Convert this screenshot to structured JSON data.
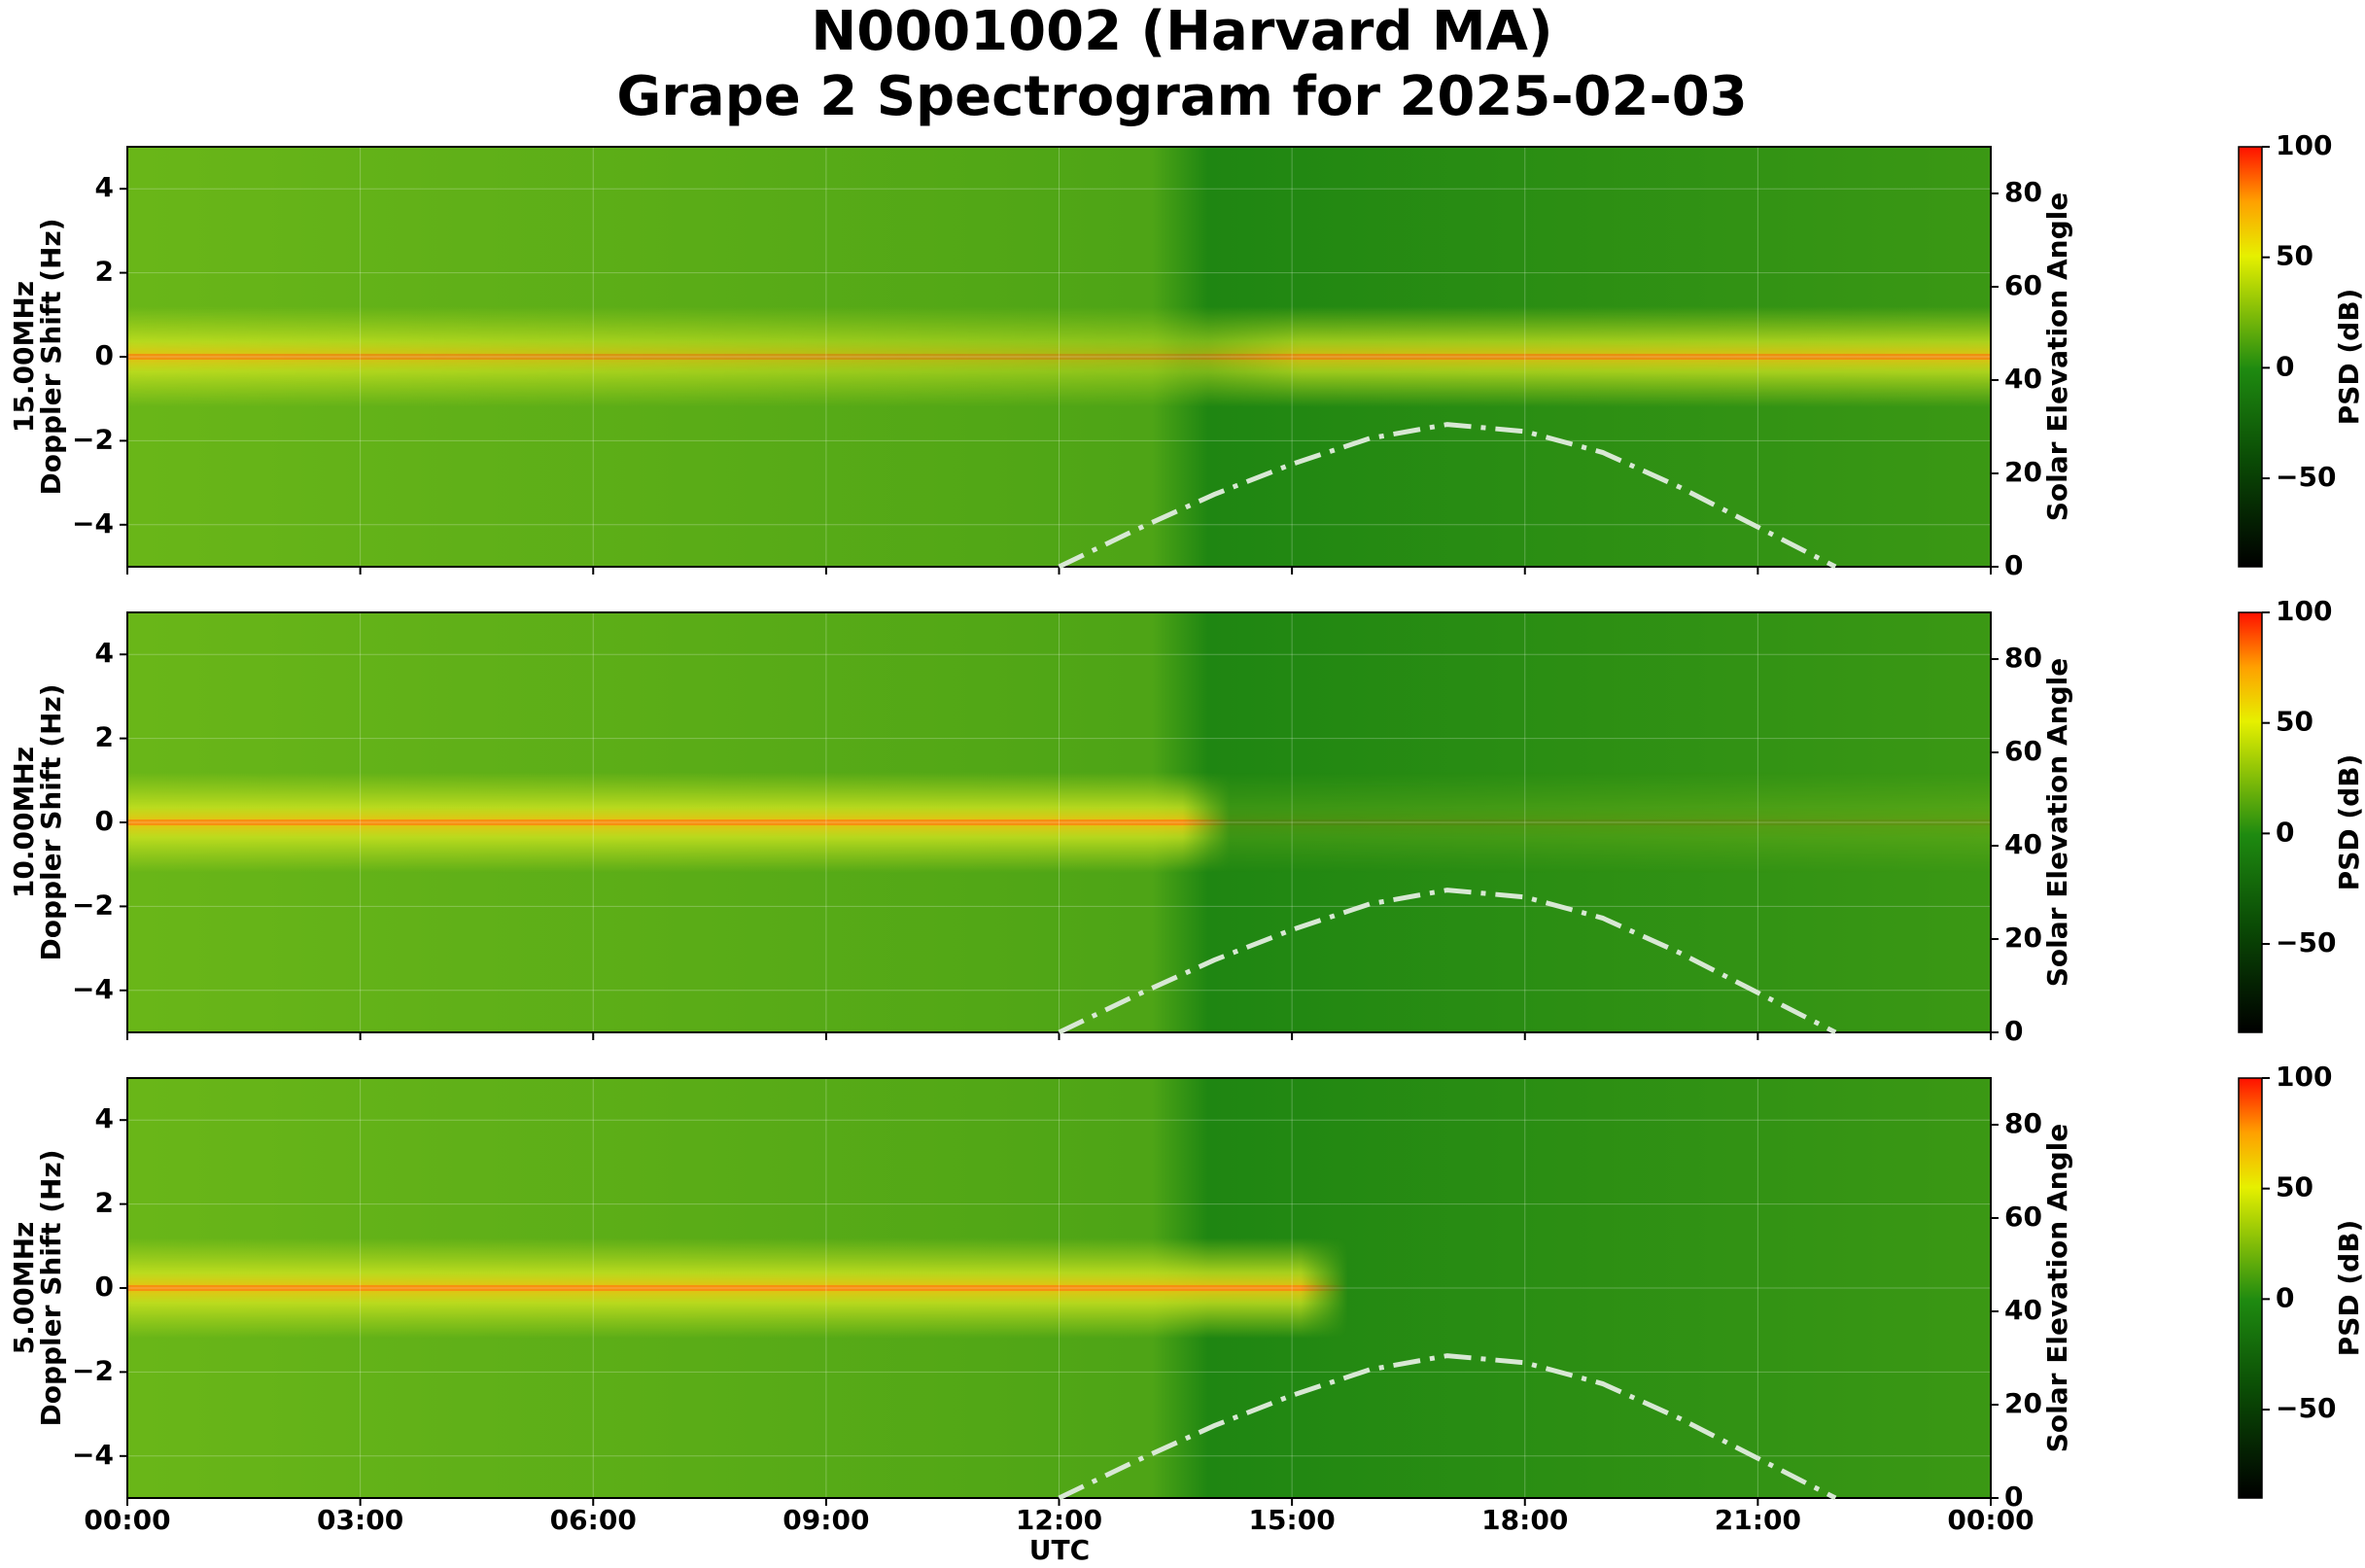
{
  "title": "N0001002 (Harvard MA)",
  "subtitle": "Grape 2 Spectrogram for 2025-02-03",
  "x_axis": {
    "label": "UTC",
    "xlim": [
      0,
      24
    ],
    "xticks": [
      {
        "value": 0,
        "label": "00:00"
      },
      {
        "value": 3,
        "label": "03:00"
      },
      {
        "value": 6,
        "label": "06:00"
      },
      {
        "value": 9,
        "label": "09:00"
      },
      {
        "value": 12,
        "label": "12:00"
      },
      {
        "value": 15,
        "label": "15:00"
      },
      {
        "value": 18,
        "label": "18:00"
      },
      {
        "value": 21,
        "label": "21:00"
      },
      {
        "value": 24,
        "label": "00:00"
      }
    ]
  },
  "chart_data": [
    {
      "type": "spectrogram",
      "panel_label": "15.00MHz",
      "ylabel": "Doppler Shift (Hz)",
      "ylim": [
        -5,
        5
      ],
      "yticks": [
        {
          "value": -4,
          "label": "−4"
        },
        {
          "value": -2,
          "label": "−2"
        },
        0,
        2,
        4
      ],
      "y2label": "Solar Elevation Angle",
      "y2lim": [
        0,
        90
      ],
      "y2ticks": [
        0,
        20,
        40,
        60,
        80
      ],
      "grid": true,
      "solar_elevation": {
        "axis": "y2",
        "color": "#d8e8d4",
        "x": [
          12,
          13,
          14,
          15,
          16,
          17,
          18,
          19,
          20,
          21,
          22
        ],
        "values": [
          0,
          8,
          15.5,
          22,
          27.5,
          30.5,
          29,
          24.5,
          17,
          8.5,
          0
        ]
      },
      "colorbar": {
        "label": "PSD (dB)",
        "lim": [
          -90,
          100
        ],
        "ticks": [
          {
            "value": -50,
            "label": "−50"
          },
          0,
          50,
          100
        ]
      }
    },
    {
      "type": "spectrogram",
      "panel_label": "10.00MHz",
      "ylabel": "Doppler Shift (Hz)",
      "ylim": [
        -5,
        5
      ],
      "yticks": [
        {
          "value": -4,
          "label": "−4"
        },
        {
          "value": -2,
          "label": "−2"
        },
        0,
        2,
        4
      ],
      "y2label": "Solar Elevation Angle",
      "y2lim": [
        0,
        90
      ],
      "y2ticks": [
        0,
        20,
        40,
        60,
        80
      ],
      "grid": true,
      "solar_elevation": {
        "axis": "y2",
        "color": "#d8e8d4",
        "x": [
          12,
          13,
          14,
          15,
          16,
          17,
          18,
          19,
          20,
          21,
          22
        ],
        "values": [
          0,
          8,
          15.5,
          22,
          27.5,
          30.5,
          29,
          24.5,
          17,
          8.5,
          0
        ]
      },
      "colorbar": {
        "label": "PSD (dB)",
        "lim": [
          -90,
          100
        ],
        "ticks": [
          {
            "value": -50,
            "label": "−50"
          },
          0,
          50,
          100
        ]
      }
    },
    {
      "type": "spectrogram",
      "panel_label": "5.00MHz",
      "ylabel": "Doppler Shift (Hz)",
      "ylim": [
        -5,
        5
      ],
      "yticks": [
        {
          "value": -4,
          "label": "−4"
        },
        {
          "value": -2,
          "label": "−2"
        },
        0,
        2,
        4
      ],
      "y2label": "Solar Elevation Angle",
      "y2lim": [
        0,
        90
      ],
      "y2ticks": [
        0,
        20,
        40,
        60,
        80
      ],
      "grid": true,
      "solar_elevation": {
        "axis": "y2",
        "color": "#d8e8d4",
        "x": [
          12,
          13,
          14,
          15,
          16,
          17,
          18,
          19,
          20,
          21,
          22
        ],
        "values": [
          0,
          8,
          15.5,
          22,
          27.5,
          30.5,
          29,
          24.5,
          17,
          8.5,
          0
        ]
      },
      "colorbar": {
        "label": "PSD (dB)",
        "lim": [
          -90,
          100
        ],
        "ticks": [
          {
            "value": -50,
            "label": "−50"
          },
          0,
          50,
          100
        ]
      }
    }
  ]
}
